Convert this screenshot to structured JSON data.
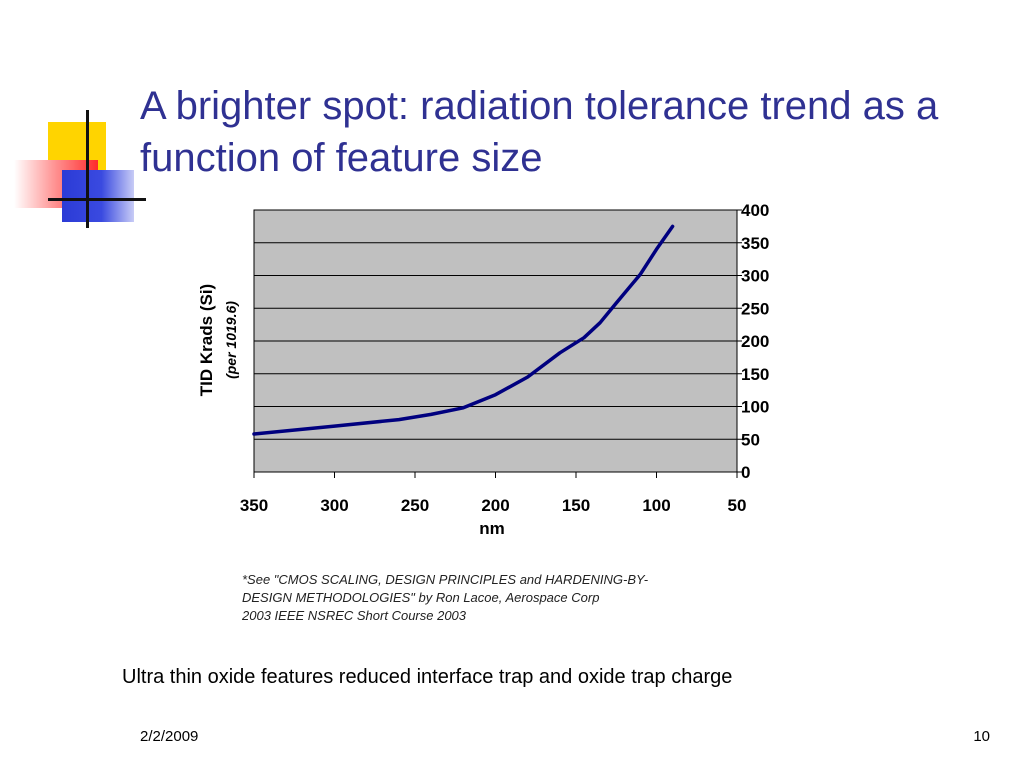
{
  "slide": {
    "title": "A brighter spot: radiation tolerance trend as a function of feature size",
    "caption": "Ultra thin oxide features reduced interface trap and oxide trap charge",
    "date": "2/2/2009",
    "page_number": "10",
    "footnote_lines": [
      "*See \"CMOS SCALING, DESIGN PRINCIPLES and HARDENING-BY-",
      "DESIGN METHODOLOGIES\"  by Ron Lacoe,  Aerospace Corp",
      "2003  IEEE NSREC  Short Course 2003"
    ],
    "colors": {
      "title": "#2f3192",
      "decor_yellow": "#ffd400",
      "decor_blue": "#2b3bd6",
      "decor_red": "#ff3333"
    }
  },
  "chart_data": {
    "type": "line",
    "title": "",
    "xlabel": "nm",
    "ylabel": "TID Krads (Si)",
    "ylabel_sub": "(per 1019.6)",
    "x_reversed": true,
    "xlim": [
      350,
      50
    ],
    "ylim": [
      0,
      400
    ],
    "x_ticks": [
      350,
      300,
      250,
      200,
      150,
      100,
      50
    ],
    "y_ticks": [
      0,
      50,
      100,
      150,
      200,
      250,
      300,
      350,
      400
    ],
    "grid": "horizontal",
    "plot_background": "#c0c0c0",
    "series": [
      {
        "color": "#00007f",
        "x": [
          350,
          300,
          260,
          240,
          220,
          200,
          180,
          160,
          145,
          135,
          125,
          110,
          100,
          90
        ],
        "y": [
          58,
          70,
          80,
          88,
          98,
          118,
          145,
          182,
          205,
          228,
          258,
          302,
          340,
          375
        ]
      }
    ]
  }
}
